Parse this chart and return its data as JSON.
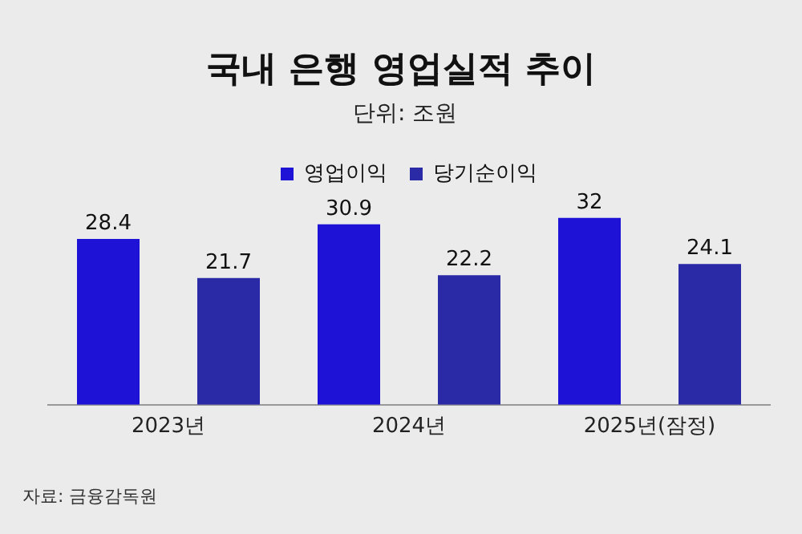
{
  "chart_data": {
    "type": "bar",
    "title": "국내 은행 영업실적 추이",
    "subtitle": "단위: 조원",
    "categories": [
      "2023년",
      "2024년",
      "2025년(잠정)"
    ],
    "series": [
      {
        "name": "영업이익",
        "color": "#1d12d6",
        "values": [
          28.4,
          30.9,
          32
        ]
      },
      {
        "name": "당기순이익",
        "color": "#2b2aa6",
        "values": [
          21.7,
          22.2,
          24.1
        ]
      }
    ],
    "data_labels": true,
    "legend": "top",
    "grid": false,
    "annotations": [
      "자료: 금융감독원"
    ]
  }
}
